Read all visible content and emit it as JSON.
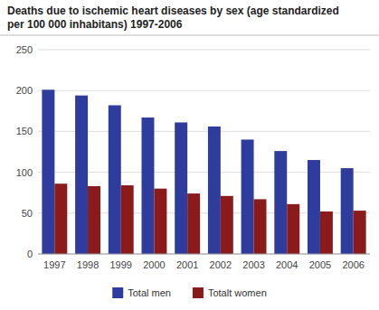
{
  "chart_data": {
    "type": "bar",
    "title": "Deaths due to ischemic heart diseases by sex (age standardized\nper 100 000 inhabitans) 1997-2006",
    "categories": [
      "1997",
      "1998",
      "1999",
      "2000",
      "2001",
      "2002",
      "2003",
      "2004",
      "2005",
      "2006"
    ],
    "series": [
      {
        "name": "Total men",
        "color": "#2e3c9e",
        "values": [
          201,
          194,
          182,
          167,
          161,
          156,
          140,
          126,
          115,
          105
        ]
      },
      {
        "name": "Totalt women",
        "color": "#8b1a1a",
        "values": [
          86,
          83,
          84,
          80,
          74,
          71,
          67,
          61,
          52,
          53
        ]
      }
    ],
    "ylim": [
      0,
      250
    ],
    "yticks": [
      0,
      50,
      100,
      150,
      200,
      250
    ],
    "grid": true,
    "legend": "bottom"
  }
}
